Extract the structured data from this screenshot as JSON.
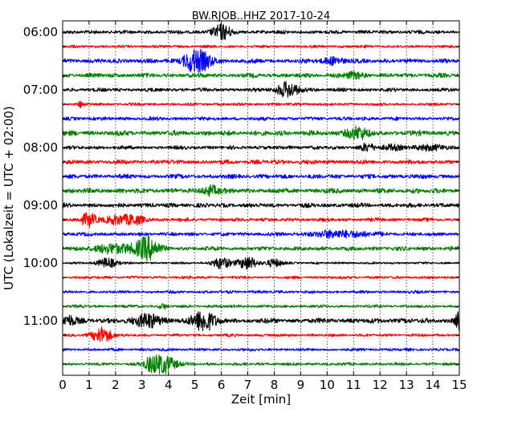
{
  "chart_data": {
    "type": "line",
    "title": "BW.RJOB..HHZ 2017-10-24",
    "xlabel": "Zeit  [min]",
    "ylabel": "UTC (Lokalzeit = UTC + 02:00)",
    "xlim": [
      0,
      15
    ],
    "x_ticks": [
      0,
      1,
      2,
      3,
      4,
      5,
      6,
      7,
      8,
      9,
      10,
      11,
      12,
      13,
      14,
      15
    ],
    "y_tick_labels": [
      "06:00",
      "07:00",
      "08:00",
      "09:00",
      "10:00",
      "11:00"
    ],
    "row_start_label_step": 4,
    "row_interval_minutes": 15,
    "grid": "vertical dotted at every minute",
    "trace_colors": [
      "#000000",
      "#ff0000",
      "#0000ff",
      "#007f00"
    ],
    "traces": [
      {
        "start": "06:00",
        "amp": 2.5,
        "events": [
          {
            "t": 6.0,
            "a": 9,
            "w": 0.25
          }
        ]
      },
      {
        "start": "06:15",
        "amp": 2.0,
        "events": []
      },
      {
        "start": "06:30",
        "amp": 3.0,
        "events": [
          {
            "t": 5.2,
            "a": 11,
            "w": 0.35
          },
          {
            "t": 4.8,
            "a": 6,
            "w": 0.2
          },
          {
            "t": 10.2,
            "a": 4,
            "w": 0.3
          }
        ]
      },
      {
        "start": "06:45",
        "amp": 3.0,
        "events": [
          {
            "t": 11.0,
            "a": 3,
            "w": 0.3
          }
        ]
      },
      {
        "start": "07:00",
        "amp": 2.5,
        "events": [
          {
            "t": 8.5,
            "a": 9,
            "w": 0.3
          }
        ]
      },
      {
        "start": "07:15",
        "amp": 2.0,
        "events": [
          {
            "t": 0.7,
            "a": 3,
            "w": 0.1
          }
        ]
      },
      {
        "start": "07:30",
        "amp": 2.5,
        "events": []
      },
      {
        "start": "07:45",
        "amp": 3.5,
        "events": [
          {
            "t": 11.1,
            "a": 7,
            "w": 0.3
          }
        ]
      },
      {
        "start": "08:00",
        "amp": 2.5,
        "events": [
          {
            "t": 11.5,
            "a": 4,
            "w": 0.2
          },
          {
            "t": 12.5,
            "a": 3,
            "w": 0.3
          },
          {
            "t": 14.0,
            "a": 3,
            "w": 0.4
          }
        ]
      },
      {
        "start": "08:15",
        "amp": 3.0,
        "events": []
      },
      {
        "start": "08:30",
        "amp": 3.0,
        "events": []
      },
      {
        "start": "08:45",
        "amp": 3.5,
        "events": [
          {
            "t": 5.6,
            "a": 6,
            "w": 0.2
          }
        ]
      },
      {
        "start": "09:00",
        "amp": 3.0,
        "events": []
      },
      {
        "start": "09:15",
        "amp": 2.5,
        "events": [
          {
            "t": 1.0,
            "a": 8,
            "w": 0.2
          },
          {
            "t": 2.0,
            "a": 5,
            "w": 0.3
          },
          {
            "t": 2.7,
            "a": 5,
            "w": 0.3
          }
        ]
      },
      {
        "start": "09:30",
        "amp": 2.5,
        "events": [
          {
            "t": 10.5,
            "a": 4,
            "w": 0.8
          }
        ]
      },
      {
        "start": "09:45",
        "amp": 3.0,
        "events": [
          {
            "t": 3.2,
            "a": 14,
            "w": 0.3
          },
          {
            "t": 2.0,
            "a": 5,
            "w": 0.6
          }
        ]
      },
      {
        "start": "10:00",
        "amp": 1.5,
        "events": [
          {
            "t": 1.7,
            "a": 6,
            "w": 0.25
          },
          {
            "t": 6.0,
            "a": 7,
            "w": 0.25
          },
          {
            "t": 7.0,
            "a": 8,
            "w": 0.25
          },
          {
            "t": 8.0,
            "a": 5,
            "w": 0.2
          }
        ]
      },
      {
        "start": "10:15",
        "amp": 2.0,
        "events": []
      },
      {
        "start": "10:30",
        "amp": 2.0,
        "events": []
      },
      {
        "start": "10:45",
        "amp": 2.0,
        "events": [
          {
            "t": 3.8,
            "a": 3,
            "w": 0.1
          }
        ]
      },
      {
        "start": "11:00",
        "amp": 3.5,
        "events": [
          {
            "t": 3.2,
            "a": 9,
            "w": 0.3
          },
          {
            "t": 5.3,
            "a": 13,
            "w": 0.3
          },
          {
            "t": 15.0,
            "a": 10,
            "w": 0.1
          },
          {
            "t": 0.2,
            "a": 6,
            "w": 0.2
          }
        ]
      },
      {
        "start": "11:15",
        "amp": 2.0,
        "events": [
          {
            "t": 1.5,
            "a": 10,
            "w": 0.25
          }
        ]
      },
      {
        "start": "11:30",
        "amp": 2.0,
        "events": []
      },
      {
        "start": "11:45",
        "amp": 2.0,
        "events": [
          {
            "t": 3.8,
            "a": 11,
            "w": 0.35
          },
          {
            "t": 3.3,
            "a": 5,
            "w": 0.2
          }
        ]
      }
    ]
  }
}
